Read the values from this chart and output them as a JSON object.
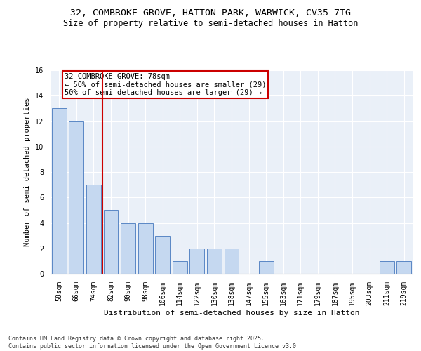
{
  "title1": "32, COMBROKE GROVE, HATTON PARK, WARWICK, CV35 7TG",
  "title2": "Size of property relative to semi-detached houses in Hatton",
  "xlabel": "Distribution of semi-detached houses by size in Hatton",
  "ylabel": "Number of semi-detached properties",
  "categories": [
    "58sqm",
    "66sqm",
    "74sqm",
    "82sqm",
    "90sqm",
    "98sqm",
    "106sqm",
    "114sqm",
    "122sqm",
    "130sqm",
    "138sqm",
    "147sqm",
    "155sqm",
    "163sqm",
    "171sqm",
    "179sqm",
    "187sqm",
    "195sqm",
    "203sqm",
    "211sqm",
    "219sqm"
  ],
  "values": [
    13,
    12,
    7,
    5,
    4,
    4,
    3,
    1,
    2,
    2,
    2,
    0,
    1,
    0,
    0,
    0,
    0,
    0,
    0,
    1,
    1
  ],
  "bar_color": "#c5d8f0",
  "bar_edge_color": "#5a87c5",
  "subject_line_color": "#cc0000",
  "annotation_text": "32 COMBROKE GROVE: 78sqm\n← 50% of semi-detached houses are smaller (29)\n50% of semi-detached houses are larger (29) →",
  "annotation_box_color": "#cc0000",
  "ylim": [
    0,
    16
  ],
  "yticks": [
    0,
    2,
    4,
    6,
    8,
    10,
    12,
    14,
    16
  ],
  "bg_color": "#eaf0f8",
  "footer_text": "Contains HM Land Registry data © Crown copyright and database right 2025.\nContains public sector information licensed under the Open Government Licence v3.0.",
  "title_fontsize": 9.5,
  "subtitle_fontsize": 8.5,
  "tick_fontsize": 7,
  "ylabel_fontsize": 7.5,
  "xlabel_fontsize": 8,
  "annotation_fontsize": 7.5,
  "footer_fontsize": 6
}
